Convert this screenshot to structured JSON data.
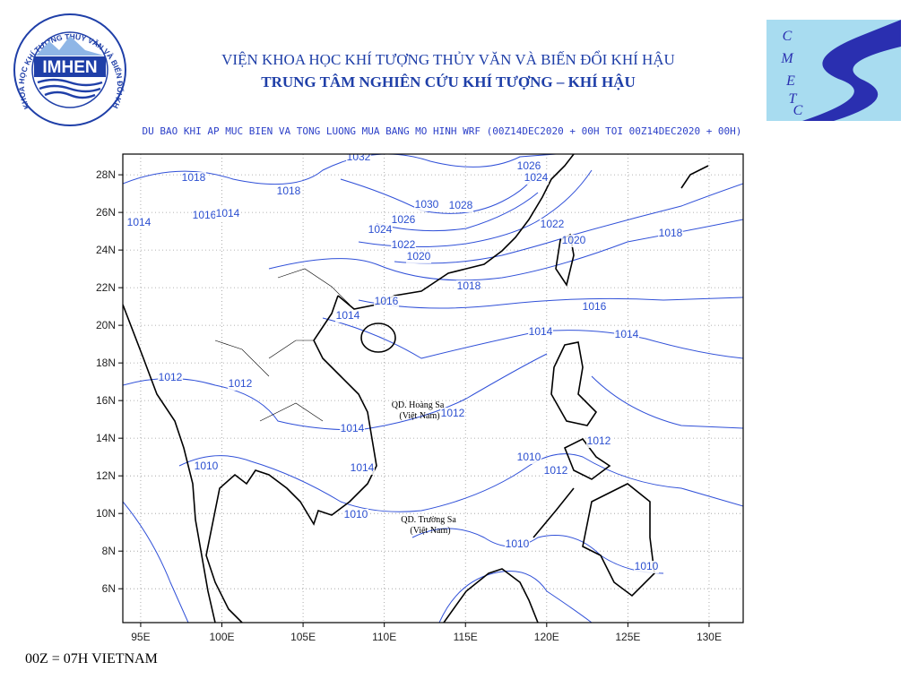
{
  "logo": {
    "ring_text": "VIỆN KHOA HỌC KHÍ TƯỢNG THỦY VĂN VÀ BIẾN ĐỔI KHÍ HẬU",
    "name": "IMHEN"
  },
  "header": {
    "line1": "VIỆN KHOA HỌC KHÍ TƯỢNG THỦY VĂN VÀ BIẾN ĐỔI KHÍ HẬU",
    "line2": "TRUNG TÂM NGHIÊN CỨU KHÍ TƯỢNG – KHÍ HẬU"
  },
  "cmetc_logo": {
    "letters": [
      "C",
      "M",
      "E",
      "T",
      "C"
    ]
  },
  "map": {
    "subtitle": "DU BAO KHI AP MUC BIEN VA TONG LUONG MUA BANG MO HINH WRF (00Z14DEC2020 + 00H TOI 00Z14DEC2020 + 00H)",
    "lonlim": [
      93.9,
      132.1
    ],
    "latlim": [
      4.2,
      29.1
    ],
    "lat_ticks": [
      {
        "value": 28,
        "label": "28N"
      },
      {
        "value": 26,
        "label": "26N"
      },
      {
        "value": 24,
        "label": "24N"
      },
      {
        "value": 22,
        "label": "22N"
      },
      {
        "value": 20,
        "label": "20N"
      },
      {
        "value": 18,
        "label": "18N"
      },
      {
        "value": 16,
        "label": "16N"
      },
      {
        "value": 14,
        "label": "14N"
      },
      {
        "value": 12,
        "label": "12N"
      },
      {
        "value": 10,
        "label": "10N"
      },
      {
        "value": 8,
        "label": "8N"
      },
      {
        "value": 6,
        "label": "6N"
      }
    ],
    "lon_ticks": [
      {
        "value": 95,
        "label": "95E"
      },
      {
        "value": 100,
        "label": "100E"
      },
      {
        "value": 105,
        "label": "105E"
      },
      {
        "value": 110,
        "label": "110E"
      },
      {
        "value": 115,
        "label": "115E"
      },
      {
        "value": 120,
        "label": "120E"
      },
      {
        "value": 125,
        "label": "125E"
      },
      {
        "value": 130,
        "label": "130E"
      }
    ],
    "contour_labels": [
      1032,
      1026,
      1024,
      1018,
      1018,
      1016,
      1014,
      1014,
      1030,
      1028,
      1026,
      1024,
      1022,
      1020,
      1018,
      1022,
      1020,
      1018,
      1016,
      1014,
      1016,
      1014,
      1014,
      1012,
      1012,
      1012,
      1010,
      1012,
      1010,
      1010,
      1010,
      1010,
      1012,
      1014,
      1014
    ],
    "places": [
      "QD. Hoàng Sa",
      "(Việt Nam)",
      "QD. Trường Sa",
      "(Việt Nam)"
    ],
    "footer": "00Z = 07H VIETNAM"
  }
}
